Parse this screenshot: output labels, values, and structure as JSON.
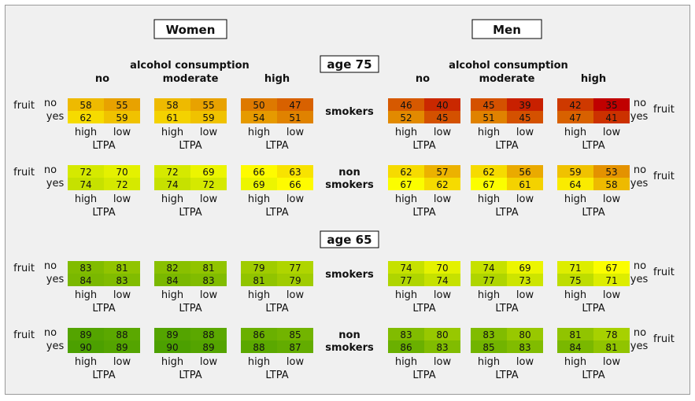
{
  "chart_data": {
    "type": "heatmap",
    "headings": {
      "women": "Women",
      "men": "Men",
      "alcohol_title": "alcohol consumption"
    },
    "alcohol_levels": [
      "no",
      "moderate",
      "high"
    ],
    "fruit_label": "fruit",
    "fruit_levels": [
      "no",
      "yes"
    ],
    "ltpa_levels": [
      "high",
      "low"
    ],
    "ltpa_label": "LTPA",
    "ages": [
      "age 75",
      "age 65"
    ],
    "smoking_labels": {
      "smokers": "smokers",
      "non": "non",
      "non_smokers": "smokers"
    },
    "cell_order": "each block: [[fruit no: LTPA high, LTPA low],[fruit yes: LTPA high, LTPA low]]; blocks ordered alcohol no, moderate, high",
    "color_scale": {
      "min": 35,
      "max": 90,
      "low_color": "#c00000",
      "mid_color": "#ffff00",
      "high_color": "#4ca000"
    },
    "rows": [
      {
        "age": "age 75",
        "smoking": "smokers",
        "women": [
          [
            [
              58,
              55
            ],
            [
              62,
              59
            ]
          ],
          [
            [
              58,
              55
            ],
            [
              61,
              59
            ]
          ],
          [
            [
              50,
              47
            ],
            [
              54,
              51
            ]
          ]
        ],
        "men": [
          [
            [
              46,
              40
            ],
            [
              52,
              45
            ]
          ],
          [
            [
              45,
              39
            ],
            [
              51,
              45
            ]
          ],
          [
            [
              42,
              35
            ],
            [
              47,
              41
            ]
          ]
        ]
      },
      {
        "age": "age 75",
        "smoking": "non smokers",
        "women": [
          [
            [
              72,
              70
            ],
            [
              74,
              72
            ]
          ],
          [
            [
              72,
              69
            ],
            [
              74,
              72
            ]
          ],
          [
            [
              66,
              63
            ],
            [
              69,
              66
            ]
          ]
        ],
        "men": [
          [
            [
              62,
              57
            ],
            [
              67,
              62
            ]
          ],
          [
            [
              62,
              56
            ],
            [
              67,
              61
            ]
          ],
          [
            [
              59,
              53
            ],
            [
              64,
              58
            ]
          ]
        ]
      },
      {
        "age": "age 65",
        "smoking": "smokers",
        "women": [
          [
            [
              83,
              81
            ],
            [
              84,
              83
            ]
          ],
          [
            [
              82,
              81
            ],
            [
              84,
              83
            ]
          ],
          [
            [
              79,
              77
            ],
            [
              81,
              79
            ]
          ]
        ],
        "men": [
          [
            [
              74,
              70
            ],
            [
              77,
              74
            ]
          ],
          [
            [
              74,
              69
            ],
            [
              77,
              73
            ]
          ],
          [
            [
              71,
              67
            ],
            [
              75,
              71
            ]
          ]
        ]
      },
      {
        "age": "age 65",
        "smoking": "non smokers",
        "women": [
          [
            [
              89,
              88
            ],
            [
              90,
              89
            ]
          ],
          [
            [
              89,
              88
            ],
            [
              90,
              89
            ]
          ],
          [
            [
              86,
              85
            ],
            [
              88,
              87
            ]
          ]
        ],
        "men": [
          [
            [
              83,
              80
            ],
            [
              86,
              83
            ]
          ],
          [
            [
              83,
              80
            ],
            [
              85,
              83
            ]
          ],
          [
            [
              81,
              78
            ],
            [
              84,
              81
            ]
          ]
        ]
      }
    ]
  }
}
